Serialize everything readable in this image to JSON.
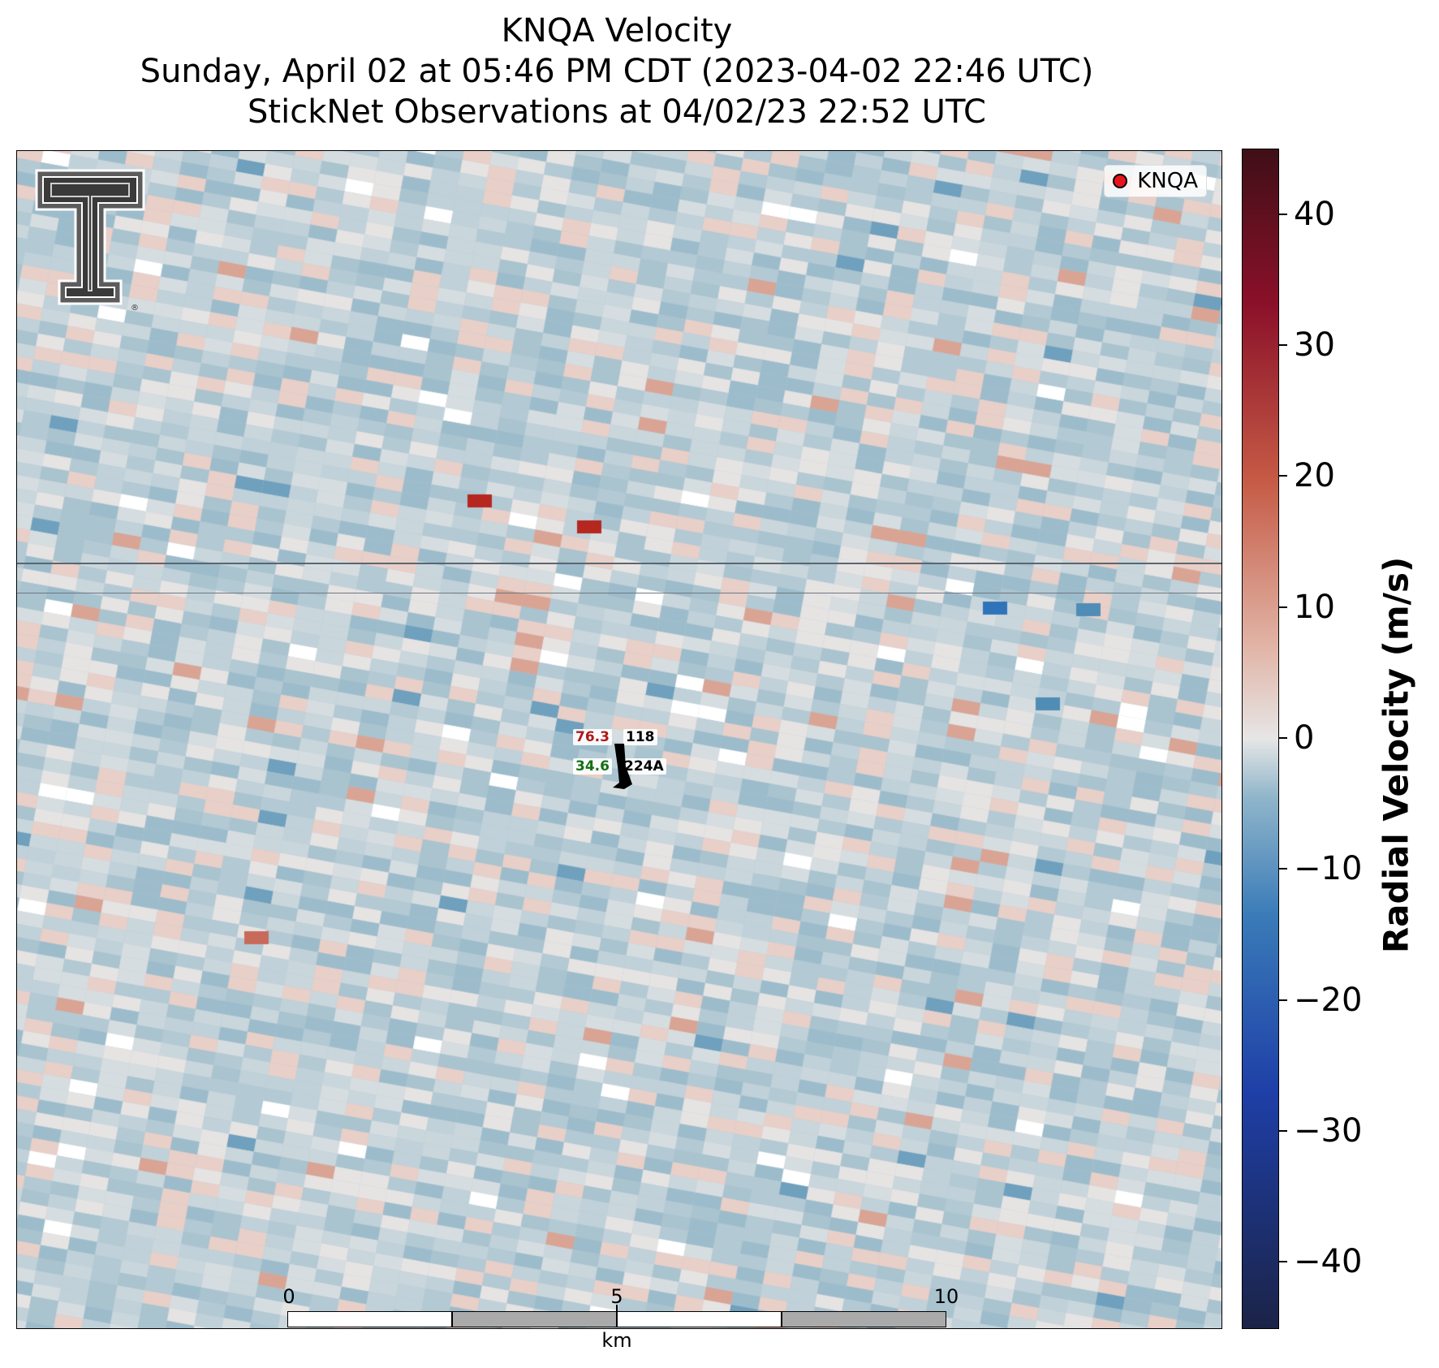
{
  "title": {
    "line1": "KNQA Velocity",
    "line2": "Sunday, April 02 at 05:46 PM CDT (2023-04-02 22:46 UTC)",
    "line3": "StickNet Observations at 04/02/23 22:52 UTC"
  },
  "legend": {
    "label": "KNQA",
    "marker_color": "#e8141c"
  },
  "logo": {
    "name": "texas-tech-double-t-logo",
    "text": "®"
  },
  "station": {
    "temperature": "76.3",
    "pressure": "118",
    "dewpoint": "34.6",
    "id": "224A",
    "temperature_color": "#b01818",
    "dewpoint_color": "#157015"
  },
  "scale_bar": {
    "ticks": [
      "0",
      "5",
      "10"
    ],
    "unit": "km"
  },
  "colorbar": {
    "label": "Radial Velocity (m/s)",
    "ticks": [
      "40",
      "30",
      "20",
      "10",
      "0",
      "−10",
      "−20",
      "−30",
      "−40"
    ],
    "range": [
      -45,
      45
    ]
  }
}
